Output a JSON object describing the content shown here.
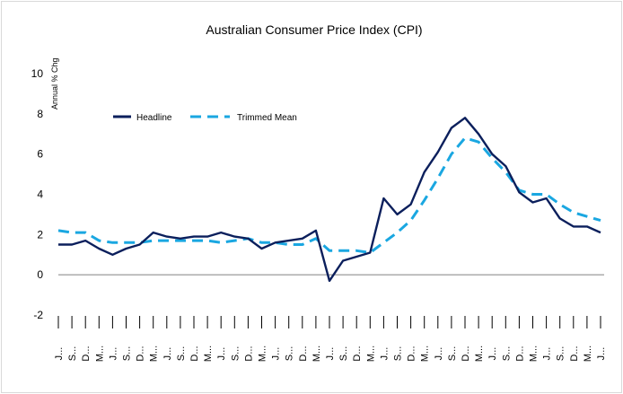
{
  "chart_data": {
    "type": "line",
    "title": "Australian Consumer Price Index (CPI)",
    "ylabel": "Annual % Chg",
    "xlabel": "",
    "ylim": [
      -2,
      10
    ],
    "yticks": [
      -2,
      0,
      2,
      4,
      6,
      8,
      10
    ],
    "grid": false,
    "legend_position": "top-left",
    "categories": [
      "J...",
      "S...",
      "D...",
      "M...",
      "J...",
      "S...",
      "D...",
      "M...",
      "J...",
      "S...",
      "D...",
      "M...",
      "J...",
      "S...",
      "D...",
      "M...",
      "J...",
      "S...",
      "D...",
      "M...",
      "J...",
      "S...",
      "D...",
      "M...",
      "J...",
      "S...",
      "D...",
      "M...",
      "J...",
      "S...",
      "D...",
      "M...",
      "J...",
      "S...",
      "D...",
      "M...",
      "J...",
      "S...",
      "D...",
      "M...",
      "J..."
    ],
    "series": [
      {
        "name": "Headline",
        "color": "#0b1f5c",
        "style": "solid",
        "values": [
          1.5,
          1.5,
          1.7,
          1.3,
          1.0,
          1.3,
          1.5,
          2.1,
          1.9,
          1.8,
          1.9,
          1.9,
          2.1,
          1.9,
          1.8,
          1.3,
          1.6,
          1.7,
          1.8,
          2.2,
          -0.3,
          0.7,
          0.9,
          1.1,
          3.8,
          3.0,
          3.5,
          5.1,
          6.1,
          7.3,
          7.8,
          7.0,
          6.0,
          5.4,
          4.1,
          3.6,
          3.8,
          2.8,
          2.4,
          2.4,
          2.1
        ]
      },
      {
        "name": "Trimmed Mean",
        "color": "#1aa7e1",
        "style": "dashed",
        "values": [
          2.2,
          2.1,
          2.1,
          1.7,
          1.6,
          1.6,
          1.6,
          1.7,
          1.7,
          1.7,
          1.7,
          1.7,
          1.6,
          1.7,
          1.8,
          1.6,
          1.6,
          1.5,
          1.5,
          1.8,
          1.2,
          1.2,
          1.2,
          1.1,
          1.6,
          2.1,
          2.7,
          3.7,
          4.8,
          6.0,
          6.8,
          6.6,
          5.8,
          5.1,
          4.2,
          4.0,
          4.0,
          3.5,
          3.1,
          2.9,
          2.7
        ]
      }
    ]
  }
}
